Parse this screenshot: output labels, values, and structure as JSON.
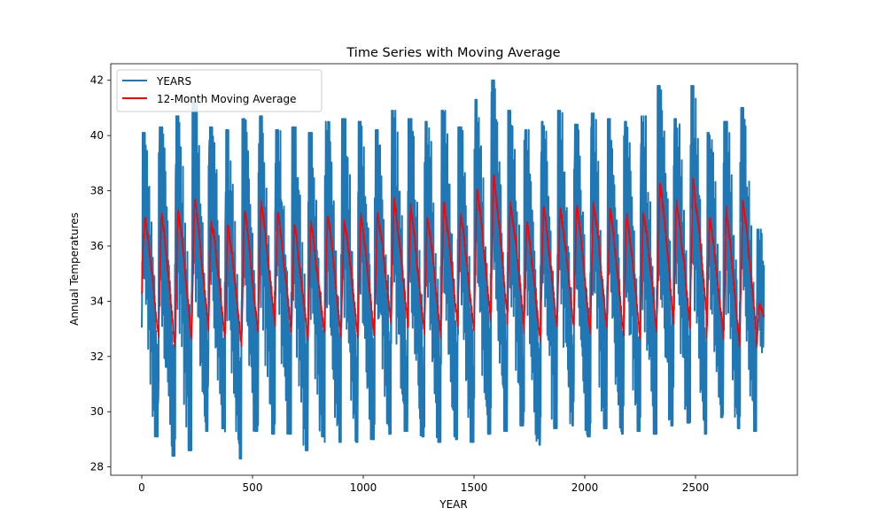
{
  "chart_data": {
    "type": "line",
    "title": "Time Series with Moving Average",
    "xlabel": "YEAR",
    "ylabel": "Annual Temperatures",
    "xlim": [
      -140,
      2960
    ],
    "ylim": [
      27.7,
      42.6
    ],
    "xticks": [
      0,
      500,
      1000,
      1500,
      2000,
      2500
    ],
    "yticks": [
      28,
      30,
      32,
      34,
      36,
      38,
      40,
      42
    ],
    "grid": false,
    "legend_position": "top-left",
    "n_points": 2810,
    "cycle_length": 75,
    "cycles": [
      {
        "start": 0,
        "peak": 40.1,
        "low": 29.1,
        "ma_max": 38.3,
        "ma_min": 32.0
      },
      {
        "start": 75,
        "peak": 40.3,
        "low": 28.4,
        "ma_max": 38.6,
        "ma_min": 31.4
      },
      {
        "start": 150,
        "peak": 40.7,
        "low": 28.6,
        "ma_max": 38.9,
        "ma_min": 31.6
      },
      {
        "start": 225,
        "peak": 41.2,
        "low": 29.3,
        "ma_max": 39.1,
        "ma_min": 32.2
      },
      {
        "start": 300,
        "peak": 40.3,
        "low": 29.4,
        "ma_max": 38.2,
        "ma_min": 32.0
      },
      {
        "start": 375,
        "peak": 40.2,
        "low": 28.3,
        "ma_max": 38.3,
        "ma_min": 31.4
      },
      {
        "start": 450,
        "peak": 40.6,
        "low": 29.3,
        "ma_max": 38.7,
        "ma_min": 31.9
      },
      {
        "start": 525,
        "peak": 40.7,
        "low": 29.2,
        "ma_max": 38.9,
        "ma_min": 32.3
      },
      {
        "start": 600,
        "peak": 40.2,
        "low": 29.2,
        "ma_max": 38.5,
        "ma_min": 32.0
      },
      {
        "start": 675,
        "peak": 40.3,
        "low": 28.6,
        "ma_max": 37.9,
        "ma_min": 31.9
      },
      {
        "start": 750,
        "peak": 40.1,
        "low": 29.1,
        "ma_max": 38.1,
        "ma_min": 32.0
      },
      {
        "start": 825,
        "peak": 40.5,
        "low": 28.9,
        "ma_max": 38.5,
        "ma_min": 31.9
      },
      {
        "start": 900,
        "peak": 40.6,
        "low": 28.9,
        "ma_max": 38.2,
        "ma_min": 32.0
      },
      {
        "start": 975,
        "peak": 40.5,
        "low": 29.0,
        "ma_max": 38.4,
        "ma_min": 31.9
      },
      {
        "start": 1050,
        "peak": 40.2,
        "low": 29.2,
        "ma_max": 38.4,
        "ma_min": 32.5
      },
      {
        "start": 1125,
        "peak": 40.9,
        "low": 29.3,
        "ma_max": 39.1,
        "ma_min": 32.4
      },
      {
        "start": 1200,
        "peak": 40.6,
        "low": 29.1,
        "ma_max": 38.7,
        "ma_min": 32.1
      },
      {
        "start": 1275,
        "peak": 40.5,
        "low": 28.9,
        "ma_max": 38.3,
        "ma_min": 32.0
      },
      {
        "start": 1350,
        "peak": 40.9,
        "low": 29.0,
        "ma_max": 38.9,
        "ma_min": 32.3
      },
      {
        "start": 1425,
        "peak": 40.3,
        "low": 28.9,
        "ma_max": 38.4,
        "ma_min": 32.1
      },
      {
        "start": 1500,
        "peak": 41.3,
        "low": 29.2,
        "ma_max": 39.6,
        "ma_min": 32.4
      },
      {
        "start": 1575,
        "peak": 42.0,
        "low": 29.3,
        "ma_max": 39.9,
        "ma_min": 32.6
      },
      {
        "start": 1650,
        "peak": 40.9,
        "low": 29.5,
        "ma_max": 39.0,
        "ma_min": 32.3
      },
      {
        "start": 1725,
        "peak": 40.2,
        "low": 28.8,
        "ma_max": 38.2,
        "ma_min": 31.7
      },
      {
        "start": 1800,
        "peak": 40.5,
        "low": 29.4,
        "ma_max": 38.7,
        "ma_min": 32.1
      },
      {
        "start": 1875,
        "peak": 40.9,
        "low": 29.5,
        "ma_max": 38.7,
        "ma_min": 32.3
      },
      {
        "start": 1950,
        "peak": 40.4,
        "low": 29.1,
        "ma_max": 38.7,
        "ma_min": 32.1
      },
      {
        "start": 2025,
        "peak": 40.8,
        "low": 29.4,
        "ma_max": 38.9,
        "ma_min": 32.2
      },
      {
        "start": 2100,
        "peak": 40.6,
        "low": 29.2,
        "ma_max": 38.7,
        "ma_min": 32.0
      },
      {
        "start": 2175,
        "peak": 40.5,
        "low": 29.3,
        "ma_max": 38.4,
        "ma_min": 31.9
      },
      {
        "start": 2250,
        "peak": 40.7,
        "low": 29.2,
        "ma_max": 38.7,
        "ma_min": 32.0
      },
      {
        "start": 2325,
        "peak": 41.8,
        "low": 29.5,
        "ma_max": 39.9,
        "ma_min": 32.4
      },
      {
        "start": 2400,
        "peak": 40.6,
        "low": 29.6,
        "ma_max": 38.9,
        "ma_min": 32.2
      },
      {
        "start": 2475,
        "peak": 41.8,
        "low": 29.2,
        "ma_max": 39.9,
        "ma_min": 32.6
      },
      {
        "start": 2550,
        "peak": 40.1,
        "low": 29.8,
        "ma_max": 38.2,
        "ma_min": 32.0
      },
      {
        "start": 2625,
        "peak": 40.5,
        "low": 29.4,
        "ma_max": 38.7,
        "ma_min": 31.4
      },
      {
        "start": 2700,
        "peak": 41.0,
        "low": 29.3,
        "ma_max": 39.1,
        "ma_min": 31.8
      },
      {
        "start": 2775,
        "peak": 36.6,
        "low": 29.6,
        "ma_max": 34.4,
        "ma_min": 31.8
      }
    ],
    "series": [
      {
        "name": "YEARS",
        "color": "#1f77b4",
        "width": 2
      },
      {
        "name": "12-Month Moving Average",
        "color": "#ff0000",
        "width": 1.5
      }
    ]
  }
}
